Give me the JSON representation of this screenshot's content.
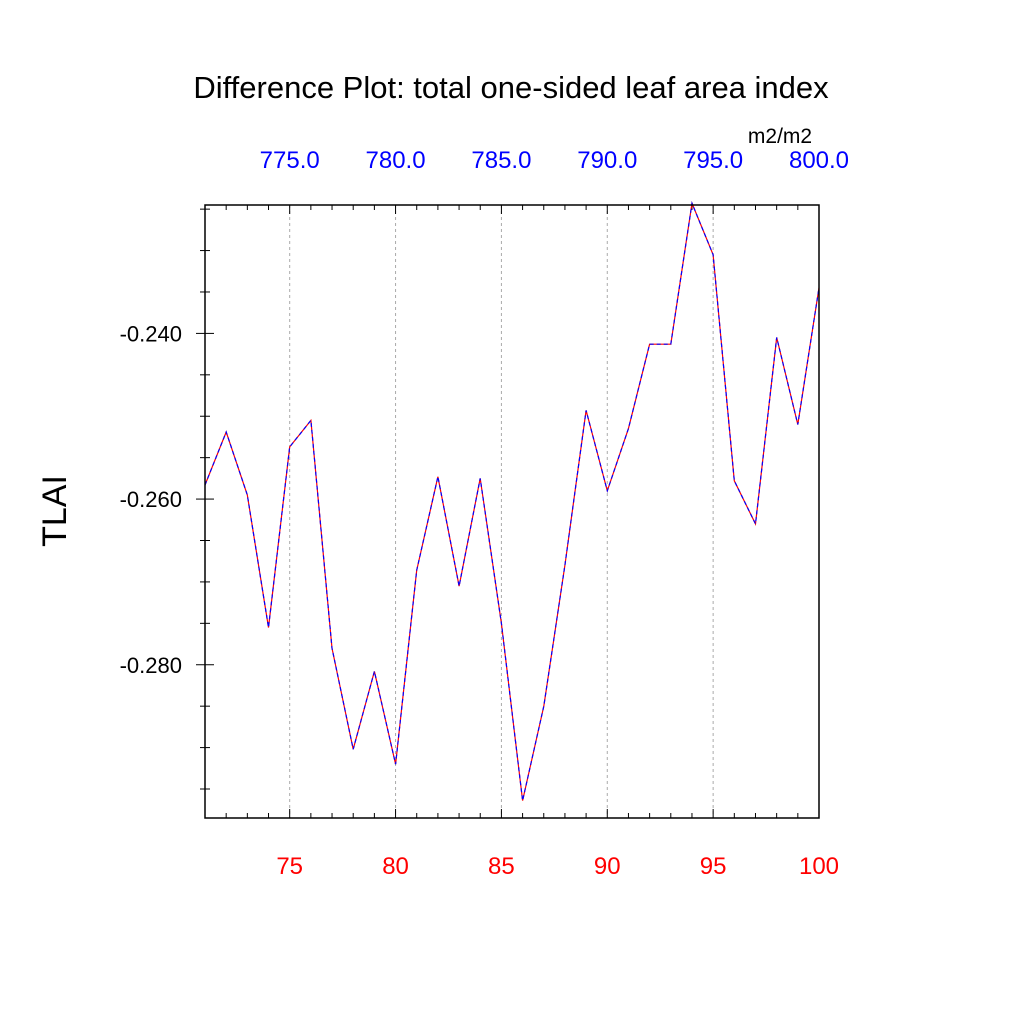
{
  "chart_data": {
    "type": "line",
    "title": "Difference Plot: total one-sided leaf area index",
    "units": "m2/m2",
    "ylabel": "TLAI",
    "xlabel": "",
    "xlim": [
      71,
      100
    ],
    "ylim": [
      -0.2985,
      -0.2245
    ],
    "x_ticks": [
      "75",
      "80",
      "85",
      "90",
      "95",
      "100"
    ],
    "x_tick_values": [
      75,
      80,
      85,
      90,
      95,
      100
    ],
    "top_ticks": [
      "775.0",
      "780.0",
      "785.0",
      "790.0",
      "795.0",
      "800.0"
    ],
    "top_tick_values": [
      75,
      80,
      85,
      90,
      95,
      100
    ],
    "y_ticks": [
      "-0.240",
      "-0.260",
      "-0.280"
    ],
    "y_tick_values": [
      -0.24,
      -0.26,
      -0.28
    ],
    "bottom_tick_color": "#ff0000",
    "top_tick_color": "#0000ff",
    "series": [
      {
        "color_primary": "#ff0000",
        "color_secondary": "#0000ff",
        "x": [
          71,
          72,
          73,
          74,
          75,
          76,
          77,
          78,
          79,
          80,
          81,
          82,
          83,
          84,
          85,
          86,
          87,
          88,
          89,
          90,
          91,
          92,
          93,
          94,
          95,
          96,
          97,
          98,
          99,
          100
        ],
        "values": [
          -0.2583,
          -0.2519,
          -0.2595,
          -0.2755,
          -0.2537,
          -0.2505,
          -0.278,
          -0.2902,
          -0.2808,
          -0.292,
          -0.2686,
          -0.2573,
          -0.2705,
          -0.2575,
          -0.275,
          -0.2964,
          -0.285,
          -0.268,
          -0.2493,
          -0.259,
          -0.2515,
          -0.2413,
          -0.2413,
          -0.2243,
          -0.2305,
          -0.2578,
          -0.263,
          -0.2405,
          -0.251,
          -0.2345
        ]
      }
    ]
  }
}
